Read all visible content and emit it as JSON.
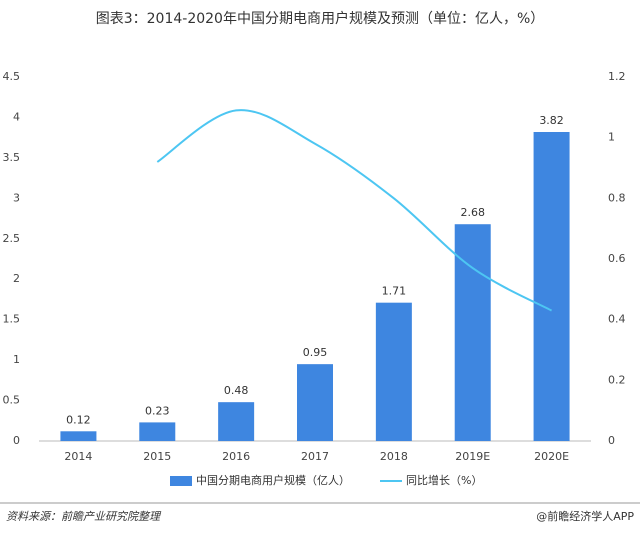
{
  "chart_data": {
    "type": "bar-line",
    "title": "图表3：2014-2020年中国分期电商用户规模及预测（单位：亿人，%）",
    "categories": [
      "2014",
      "2015",
      "2016",
      "2017",
      "2018",
      "2019E",
      "2020E"
    ],
    "series": [
      {
        "name": "中国分期电商用户规模（亿人）",
        "type": "bar",
        "color": "#3e86e0",
        "values": [
          0.12,
          0.23,
          0.48,
          0.95,
          1.71,
          2.68,
          3.82
        ]
      },
      {
        "name": "同比增长（%）",
        "type": "line",
        "axis": "y2",
        "color": "#4dc6f2",
        "values": [
          null,
          0.92,
          1.09,
          0.98,
          0.8,
          0.57,
          0.43
        ]
      }
    ],
    "ylim": [
      0,
      4.5
    ],
    "yticks": [
      0,
      0.5,
      1,
      1.5,
      2,
      2.5,
      3,
      3.5,
      4,
      4.5
    ],
    "y2lim": [
      0,
      1.2
    ],
    "y2ticks": [
      0,
      0.2,
      0.4,
      0.6,
      0.8,
      1,
      1.2
    ],
    "grid": false,
    "legend": "bottom"
  },
  "footer": {
    "source": "资料来源：前瞻产业研究院整理",
    "brand": "@前瞻经济学人APP"
  }
}
